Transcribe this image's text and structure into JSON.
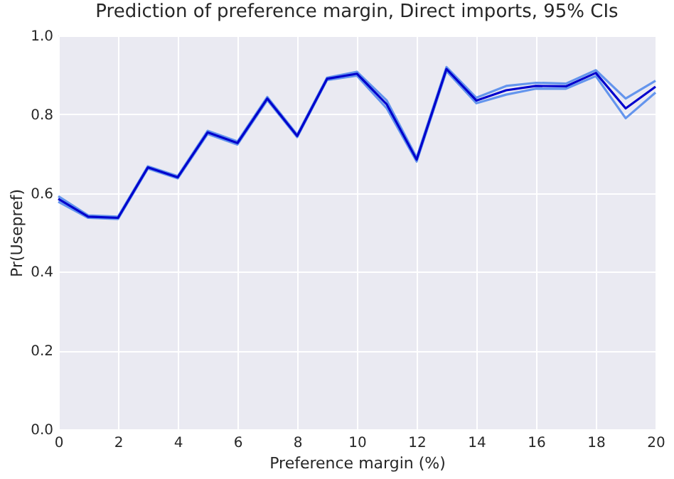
{
  "chart_data": {
    "type": "line",
    "title": "Prediction of preference margin, Direct imports, 95% CIs",
    "xlabel": "Preference margin (%)",
    "ylabel": "Pr(Usepref)",
    "x": [
      0,
      1,
      2,
      3,
      4,
      5,
      6,
      7,
      8,
      9,
      10,
      11,
      12,
      13,
      14,
      15,
      16,
      17,
      18,
      19,
      20
    ],
    "series": [
      {
        "color": "#6495ed",
        "values": [
          0.578,
          0.537,
          0.534,
          0.662,
          0.637,
          0.75,
          0.723,
          0.836,
          0.742,
          0.887,
          0.898,
          0.815,
          0.68,
          0.91,
          0.828,
          0.85,
          0.865,
          0.865,
          0.897,
          0.79,
          0.855
        ]
      },
      {
        "color": "#6495ed",
        "values": [
          0.592,
          0.543,
          0.54,
          0.668,
          0.643,
          0.758,
          0.731,
          0.844,
          0.748,
          0.893,
          0.908,
          0.835,
          0.69,
          0.92,
          0.842,
          0.872,
          0.88,
          0.878,
          0.912,
          0.84,
          0.885
        ]
      },
      {
        "color": "#0000cd",
        "values": [
          0.585,
          0.54,
          0.537,
          0.665,
          0.64,
          0.754,
          0.727,
          0.84,
          0.745,
          0.89,
          0.903,
          0.825,
          0.685,
          0.915,
          0.835,
          0.861,
          0.872,
          0.871,
          0.905,
          0.815,
          0.87
        ]
      }
    ],
    "xlim": [
      0,
      20
    ],
    "xticks": [
      0,
      2,
      4,
      6,
      8,
      10,
      12,
      14,
      16,
      18,
      20
    ],
    "ylim": [
      0,
      1
    ],
    "yticks": [
      {
        "value": 0,
        "label": "0.0"
      },
      0.2,
      0.4,
      0.6,
      0.8,
      {
        "value": 1,
        "label": "1.0"
      }
    ],
    "grid": true,
    "line_style": "solid"
  }
}
